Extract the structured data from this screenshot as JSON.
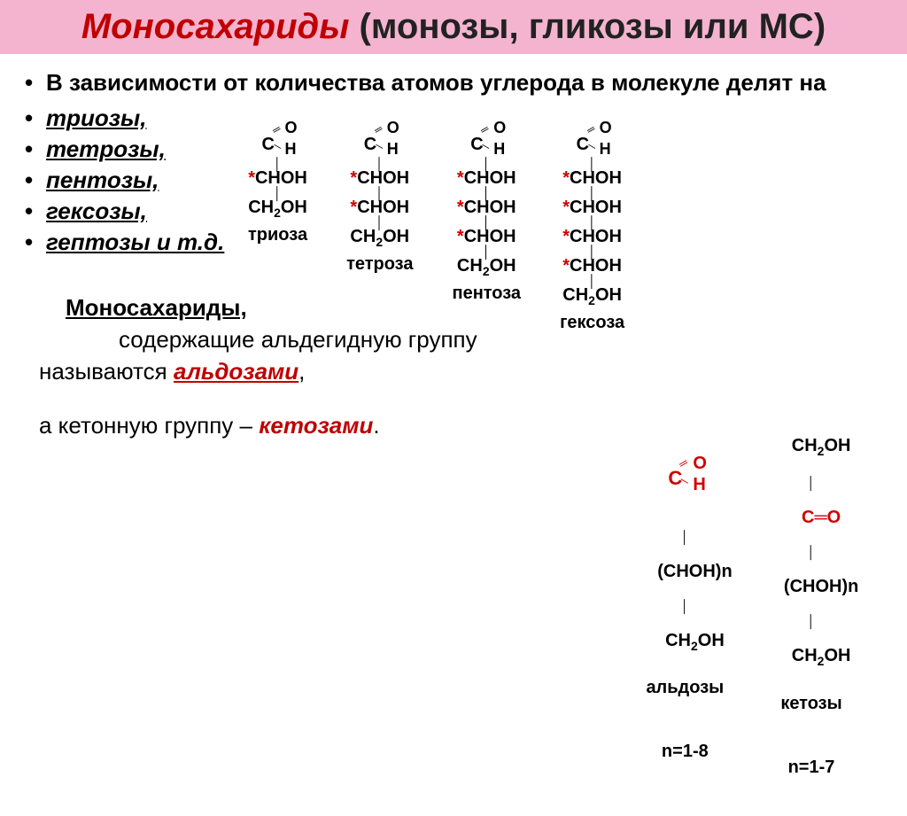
{
  "title": {
    "main": "Моносахариды",
    "sub": " (монозы, гликозы или МС)",
    "bg_color": "#f4b4d0",
    "main_color": "#c00000",
    "sub_color": "#222222"
  },
  "intro": "В зависимости от  количества атомов углерода  в молекуле делят на",
  "bullets": [
    "триозы,",
    "тетрозы,",
    "пентозы,",
    "гексозы,",
    "гептозы и т.д."
  ],
  "sugars": [
    {
      "label": "триоза",
      "choh_count": 1
    },
    {
      "label": "тетроза",
      "choh_count": 2
    },
    {
      "label": "пентоза",
      "choh_count": 3
    },
    {
      "label": "гексоза",
      "choh_count": 4
    }
  ],
  "def": {
    "line1_lead": "Моносахариды,",
    "line2": "содержащие альдегидную группу",
    "line3_pre": "называются ",
    "aldose": "альдозами",
    "line4_pre": "а кетонную группу – ",
    "ketose": "кетозами"
  },
  "generic": {
    "aldose": {
      "top": "C",
      "o": "O",
      "h": "H",
      "body": "(CHOH)n",
      "tail": "CH₂OH",
      "label": "альдозы",
      "range": "n=1-8"
    },
    "ketose": {
      "top": "CH₂OH",
      "co": "C═O",
      "body": "(CHOH)n",
      "tail": "CH₂OH",
      "label": "кетозы",
      "range": "n=1-7"
    }
  },
  "colors": {
    "red": "#d00000",
    "dark_red": "#c00000",
    "text": "#000000"
  }
}
